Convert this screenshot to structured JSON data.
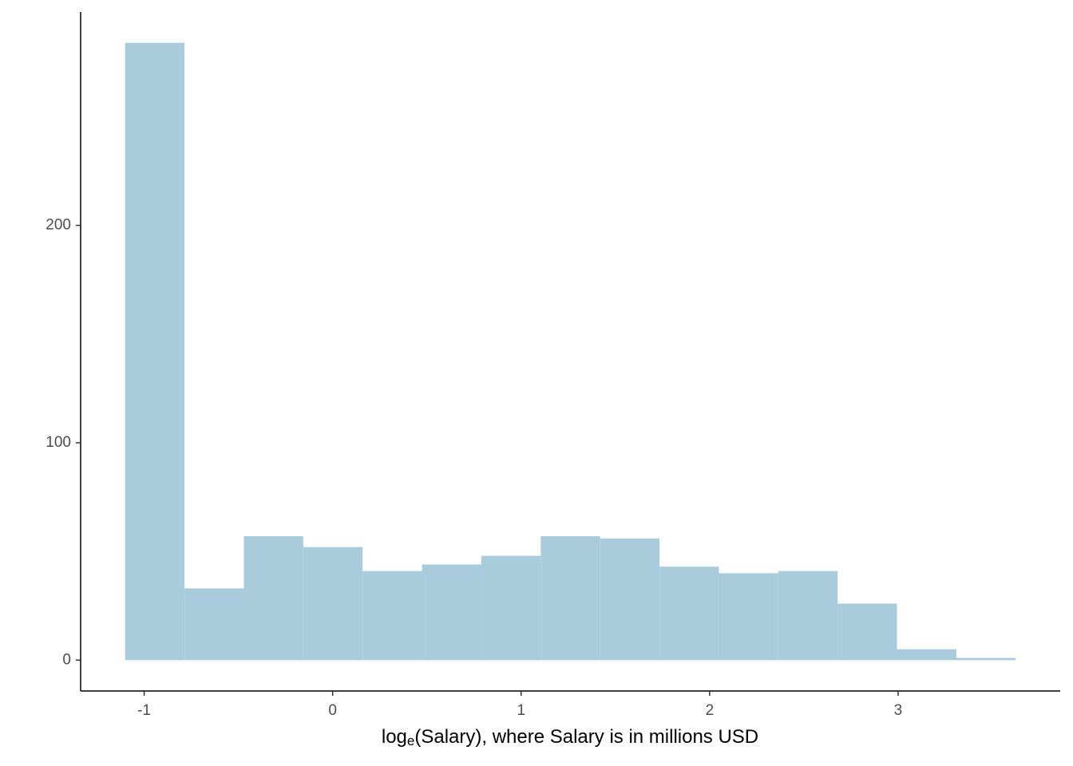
{
  "chart_data": {
    "type": "histogram",
    "x_label": [
      "log",
      "e",
      "(Salary), where Salary is in millions USD"
    ],
    "bins": [
      -1.101,
      -0.786,
      -0.471,
      -0.156,
      0.159,
      0.474,
      0.789,
      1.104,
      1.419,
      1.734,
      2.049,
      2.364,
      2.679,
      2.994,
      3.309,
      3.624
    ],
    "values": [
      284,
      33,
      57,
      52,
      41,
      44,
      48,
      57,
      56,
      43,
      40,
      41,
      26,
      5,
      1
    ],
    "color": "#a9cbdb",
    "xlim": [
      -1.337,
      3.86
    ],
    "xticks": [
      -1,
      0,
      1,
      2,
      3
    ],
    "ylim": [
      -14.2,
      298.2
    ],
    "yticks": [
      0,
      100,
      200
    ],
    "grid": false
  }
}
